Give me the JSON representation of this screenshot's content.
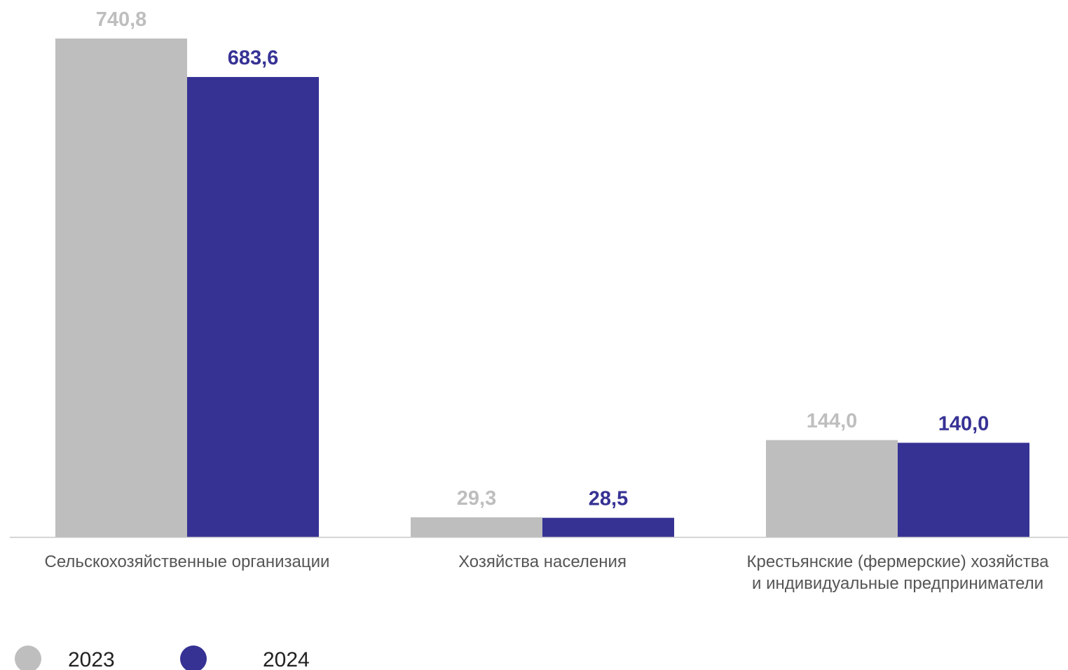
{
  "chart_data": {
    "type": "bar",
    "categories": [
      [
        "Сельскохозяйственные организации"
      ],
      [
        "Хозяйства населения"
      ],
      [
        "Крестьянские (фермерские) хозяйства",
        "и индивидуальные предприниматели"
      ]
    ],
    "series": [
      {
        "name": "2023",
        "color": "#bebebe",
        "values": [
          740.8,
          29.3,
          144.0
        ],
        "labels": [
          "740,8",
          "29,3",
          "144,0"
        ]
      },
      {
        "name": "2024",
        "color": "#363294",
        "values": [
          683.6,
          28.5,
          140.0
        ],
        "labels": [
          "683,6",
          "28,5",
          "140,0"
        ]
      }
    ],
    "ylim": [
      0,
      740.8
    ],
    "title": "",
    "xlabel": "",
    "ylabel": "",
    "grid": false,
    "legend": "bottom-left",
    "colors": {
      "axis_line": "#c8c8c8",
      "category_text": "#555555",
      "legend_text": "#222222"
    }
  }
}
